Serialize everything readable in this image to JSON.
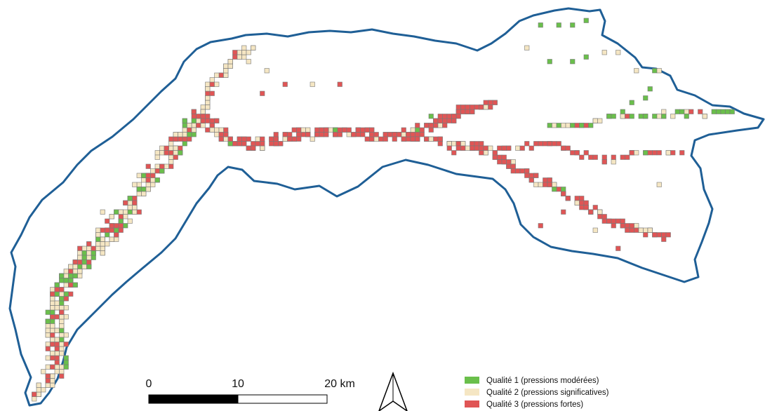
{
  "colors": {
    "basin_outline": "#1f5f96",
    "quality_1": "#6abf4b",
    "quality_2": "#f5e6c3",
    "quality_3": "#e05555"
  },
  "scale_bar": {
    "labels": [
      "0",
      "10",
      "20 km"
    ]
  },
  "north_arrow": {
    "icon": "north-arrow-icon"
  },
  "legend": {
    "items": [
      {
        "label": "Qualité 1 (pressions modérées)",
        "color_key": "quality_1"
      },
      {
        "label": "Qualité 2 (pressions significatives)",
        "color_key": "quality_2"
      },
      {
        "label": "Qualité 3 (pressions fortes)",
        "color_key": "quality_3"
      }
    ]
  }
}
